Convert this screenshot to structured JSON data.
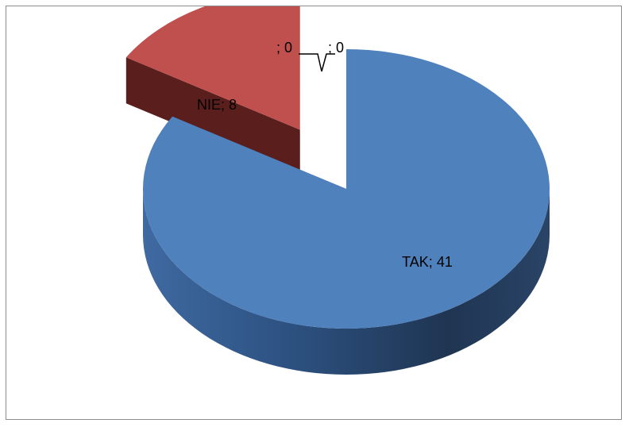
{
  "chart_data": {
    "type": "pie",
    "style": "3d-exploded",
    "title": "",
    "categories": [
      "TAK",
      "NIE",
      "",
      ""
    ],
    "values": [
      41,
      8,
      0,
      0
    ],
    "colors": [
      "#4f81bd",
      "#c0504d",
      "#9bbb59",
      "#8064a2"
    ],
    "data_labels": [
      "TAK; 41",
      "NIE; 8",
      "; 0",
      "; 0"
    ],
    "legend": "none"
  }
}
